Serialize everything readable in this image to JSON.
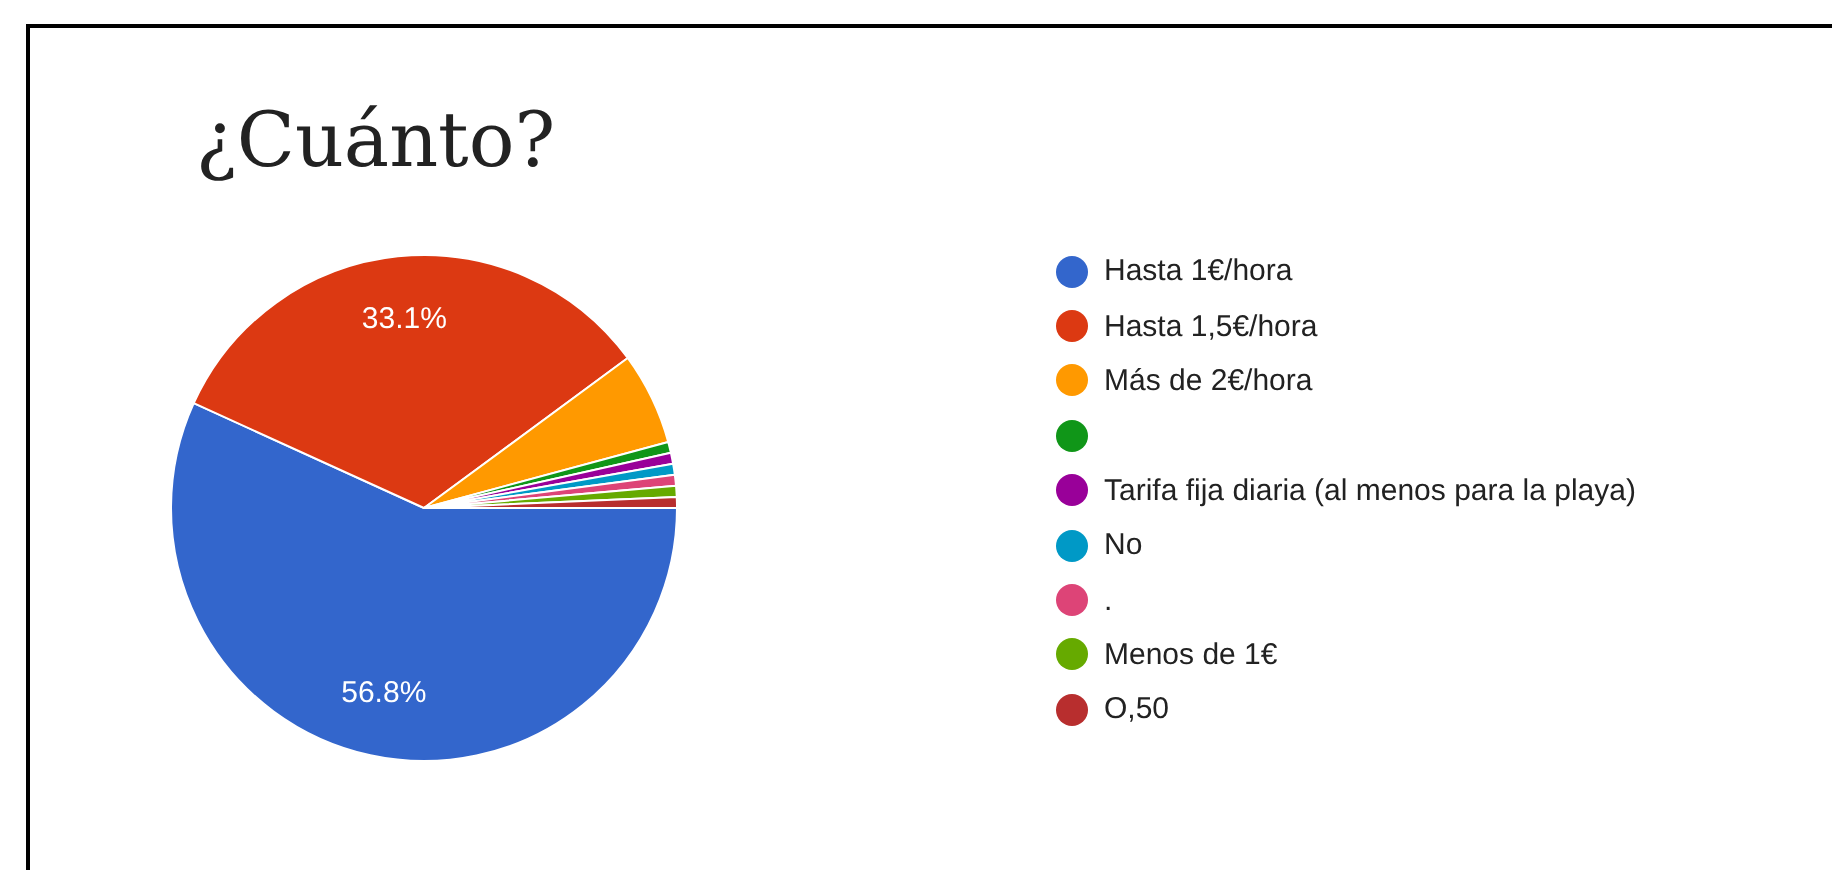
{
  "chart_data": {
    "type": "pie",
    "title": "¿Cuánto?",
    "categories": [
      "Hasta 1€/hora",
      "Hasta 1,5€/hora",
      "Más de 2€/hora",
      null,
      "Tarifa fija diaria (al menos para la playa)",
      "No",
      ".",
      "Menos de 1€",
      "O,50"
    ],
    "values": [
      56.8,
      33.1,
      5.9,
      0.7,
      0.7,
      0.7,
      0.7,
      0.7,
      0.7
    ],
    "colors": [
      "#3366cc",
      "#dc3912",
      "#ff9900",
      "#109618",
      "#990099",
      "#0099c6",
      "#dd4477",
      "#66aa00",
      "#b82e2e"
    ],
    "value_labels": [
      "56.8%",
      "33.1%",
      null,
      null,
      null,
      null,
      null,
      null,
      null
    ],
    "legend": "right"
  }
}
